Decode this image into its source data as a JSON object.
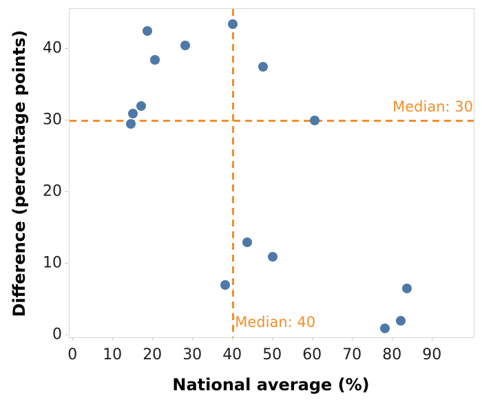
{
  "figure": {
    "x_axis_title": "National average (%)",
    "y_axis_title": "Difference (percentage points)"
  },
  "colors": {
    "point": "#4e79a7",
    "reference": "#f28e2b",
    "tick_text": "#1f1f1f",
    "axis_title_text": "#000000",
    "plot_border": "#d6d6d6",
    "tick_mark": "#c9c9c9"
  },
  "chart_data": {
    "type": "scatter",
    "title": "",
    "xlabel": "National average (%)",
    "ylabel": "Difference (percentage points)",
    "xlim": [
      -0.9,
      100.3
    ],
    "ylim": [
      -0.3,
      45.6
    ],
    "x_ticks": [
      0,
      10,
      20,
      30,
      40,
      50,
      60,
      70,
      80,
      90
    ],
    "y_ticks": [
      0,
      10,
      20,
      30,
      40
    ],
    "grid": false,
    "legend": false,
    "points": [
      [
        18.5,
        42.5
      ],
      [
        28,
        40.5
      ],
      [
        20.5,
        38.5
      ],
      [
        17,
        32
      ],
      [
        15,
        31
      ],
      [
        14.5,
        29.5
      ],
      [
        40,
        43.5
      ],
      [
        47.5,
        37.5
      ],
      [
        60.5,
        30
      ],
      [
        43.5,
        13
      ],
      [
        50,
        11
      ],
      [
        38,
        7
      ],
      [
        83.5,
        6.5
      ],
      [
        78,
        1
      ],
      [
        82,
        2
      ]
    ],
    "reference_lines": [
      {
        "axis": "y",
        "value": 30,
        "label": "Median: 30",
        "label_position": "right-above"
      },
      {
        "axis": "x",
        "value": 40,
        "label": "Median: 40",
        "label_position": "bottom-right"
      }
    ]
  }
}
